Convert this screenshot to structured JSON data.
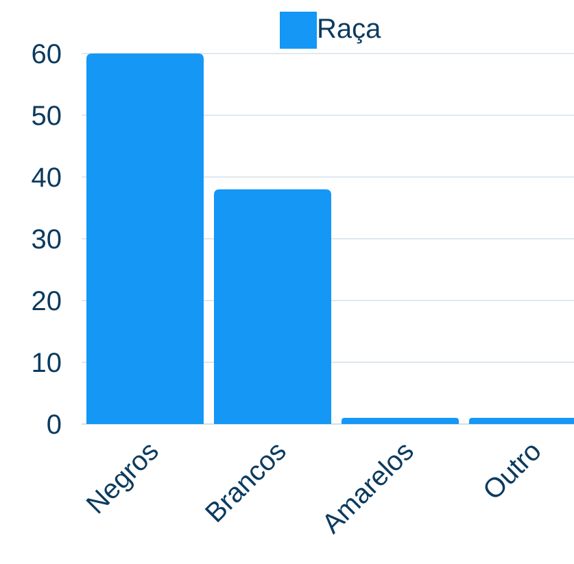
{
  "chart_data": {
    "type": "bar",
    "title": "",
    "xlabel": "",
    "ylabel": "",
    "categories": [
      "Negros",
      "Brancos",
      "Amarelos",
      "Outro"
    ],
    "series": [
      {
        "name": "Raça",
        "values": [
          60,
          38,
          1,
          1
        ],
        "color": "#1497f5"
      }
    ],
    "ylim": [
      0,
      60
    ],
    "yticks": [
      0,
      10,
      20,
      30,
      40,
      50,
      60
    ],
    "grid": true,
    "legend": "top-center"
  }
}
